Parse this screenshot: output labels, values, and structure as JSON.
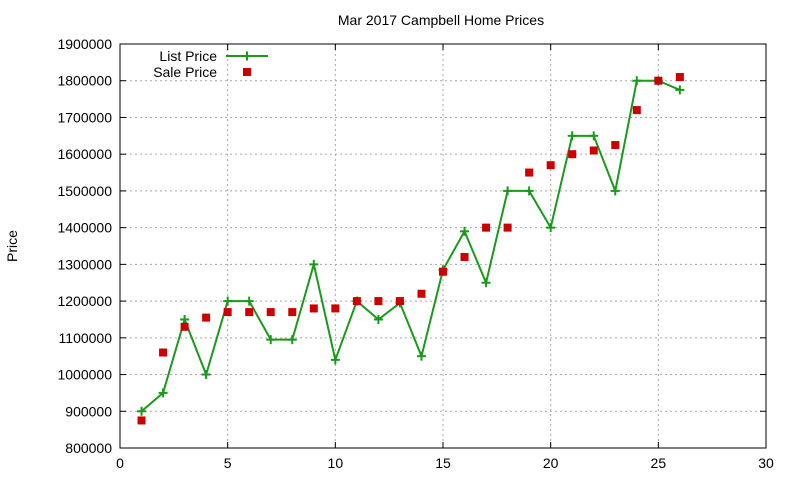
{
  "chart_data": {
    "type": "line",
    "title": "Mar 2017 Campbell Home Prices",
    "xlabel": "",
    "ylabel": "Price",
    "xlim": [
      0,
      30
    ],
    "ylim": [
      800000,
      1900000
    ],
    "x_ticks": [
      0,
      5,
      10,
      15,
      20,
      25,
      30
    ],
    "y_ticks": [
      800000,
      900000,
      1000000,
      1100000,
      1200000,
      1300000,
      1400000,
      1500000,
      1600000,
      1700000,
      1800000,
      1900000
    ],
    "grid": true,
    "legend_position": "top-left",
    "series": [
      {
        "name": "List Price",
        "style": "line-with-plus-markers",
        "color": "#1a9a1a",
        "x": [
          1,
          2,
          3,
          4,
          5,
          6,
          7,
          8,
          9,
          10,
          11,
          12,
          13,
          14,
          15,
          16,
          17,
          18,
          19,
          20,
          21,
          22,
          23,
          24,
          25,
          26
        ],
        "values": [
          900000,
          950000,
          1150000,
          1000000,
          1200000,
          1200000,
          1095000,
          1095000,
          1300000,
          1040000,
          1200000,
          1150000,
          1195000,
          1050000,
          1285000,
          1390000,
          1250000,
          1500000,
          1500000,
          1400000,
          1650000,
          1650000,
          1500000,
          1800000,
          1800000,
          1775000
        ]
      },
      {
        "name": "Sale Price",
        "style": "square-markers",
        "color": "#cc0000",
        "x": [
          1,
          2,
          3,
          4,
          5,
          6,
          7,
          8,
          9,
          10,
          11,
          12,
          13,
          14,
          15,
          16,
          17,
          18,
          19,
          20,
          21,
          22,
          23,
          24,
          25,
          26
        ],
        "values": [
          875000,
          1060000,
          1130000,
          1155000,
          1170000,
          1170000,
          1170000,
          1170000,
          1180000,
          1180000,
          1200000,
          1200000,
          1200000,
          1220000,
          1280000,
          1320000,
          1400000,
          1400000,
          1550000,
          1570000,
          1600000,
          1610000,
          1625000,
          1720000,
          1800000,
          1810000
        ]
      }
    ]
  }
}
